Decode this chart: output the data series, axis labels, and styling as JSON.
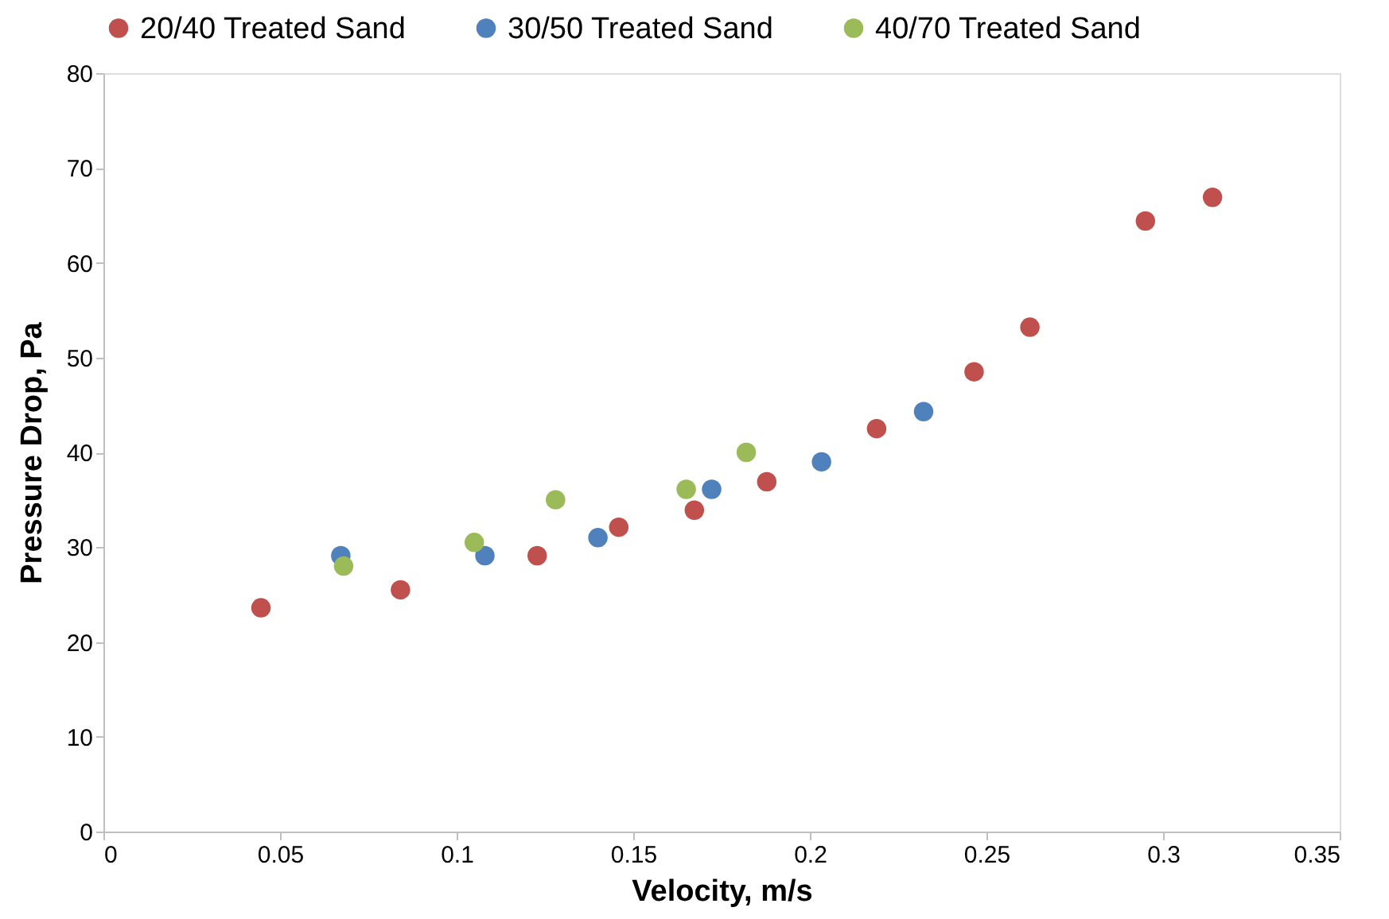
{
  "chart_data": {
    "type": "scatter",
    "xlabel": "Velocity, m/s",
    "ylabel": "Pressure Drop, Pa",
    "xlim": [
      0,
      0.35
    ],
    "xticks": [
      0,
      0.05,
      0.1,
      0.15,
      0.2,
      0.25,
      0.3,
      0.35
    ],
    "ylim": [
      0,
      80
    ],
    "yticks": [
      0,
      10,
      20,
      30,
      40,
      50,
      60,
      70,
      80
    ],
    "grid": false,
    "legend": "top",
    "marker": "circle",
    "series": [
      {
        "name": "20/40 Treated Sand",
        "color": "#c0504d",
        "x": [
          0.0446,
          0.0841,
          0.1228,
          0.1459,
          0.1673,
          0.1878,
          0.2189,
          0.2465,
          0.2623,
          0.295,
          0.314
        ],
        "values": [
          23.6,
          25.5,
          29.1,
          32.1,
          33.9,
          36.9,
          42.5,
          48.5,
          53.2,
          64.4,
          66.9
        ]
      },
      {
        "name": "30/50 Treated Sand",
        "color": "#4f81bd",
        "x": [
          0.0672,
          0.108,
          0.14,
          0.1722,
          0.2033,
          0.2322
        ],
        "values": [
          29.1,
          29.1,
          31.0,
          36.1,
          39.0,
          44.3
        ]
      },
      {
        "name": "40/70 Treated Sand",
        "color": "#9bbb59",
        "x": [
          0.068,
          0.105,
          0.128,
          0.165,
          0.182
        ],
        "values": [
          28.0,
          30.5,
          35.0,
          36.1,
          40.0
        ]
      }
    ]
  }
}
